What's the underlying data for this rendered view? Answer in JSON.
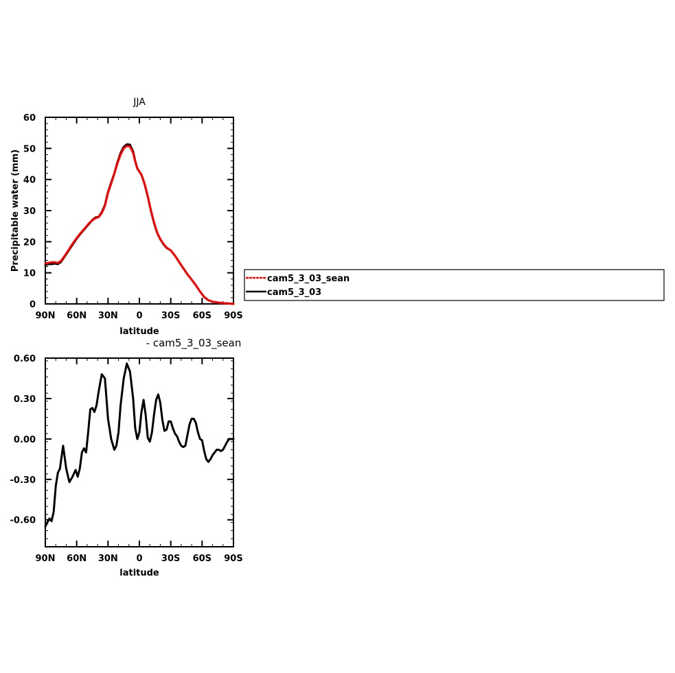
{
  "colors": {
    "cam5_3_03_sean": "#ff0000",
    "cam5_3_03": "#000000",
    "diff": "#000000"
  },
  "legend": {
    "placement": "right",
    "entries": [
      {
        "label": "cam5_3_03_sean",
        "color": "#ff0000"
      },
      {
        "label": "cam5_3_03",
        "color": "#000000"
      }
    ]
  },
  "chart_data": [
    {
      "type": "line",
      "title": "JJA",
      "xlabel": "latitude",
      "ylabel": "Precipitable water (mm)",
      "xlim": [
        90,
        -90
      ],
      "ylim": [
        0,
        60
      ],
      "xticks": [
        90,
        60,
        30,
        0,
        -30,
        -60,
        -90
      ],
      "xticklabels": [
        "90N",
        "60N",
        "30N",
        "0",
        "30S",
        "60S",
        "90S"
      ],
      "yticks": [
        0,
        10,
        20,
        30,
        40,
        50,
        60
      ],
      "yticklabels": [
        "0",
        "10",
        "20",
        "30",
        "40",
        "50",
        "60"
      ],
      "grid": false,
      "series": [
        {
          "name": "cam5_3_03",
          "color": "#000000",
          "x": [
            90,
            87,
            84,
            81,
            78,
            75,
            72,
            68,
            64,
            60,
            56,
            52,
            48,
            45,
            42,
            39,
            36,
            33,
            30,
            27,
            24,
            21,
            18,
            15,
            12,
            9,
            6,
            4,
            2,
            0,
            -2,
            -5,
            -8,
            -11,
            -14,
            -17,
            -20,
            -23,
            -26,
            -30,
            -34,
            -38,
            -42,
            -46,
            -50,
            -54,
            -58,
            -62,
            -66,
            -70,
            -74,
            -78,
            -82,
            -86,
            -90
          ],
          "y": [
            12.5,
            12.8,
            12.8,
            13.0,
            12.8,
            13.5,
            15.0,
            17.0,
            19.0,
            21.0,
            22.7,
            24.2,
            25.8,
            27.0,
            27.8,
            28.0,
            29.5,
            31.8,
            36.0,
            39.0,
            42.0,
            45.5,
            48.5,
            50.5,
            51.3,
            51.2,
            49.0,
            46.0,
            43.5,
            42.5,
            41.5,
            38.5,
            34.5,
            30.0,
            26.0,
            22.8,
            20.8,
            19.2,
            18.0,
            17.2,
            15.5,
            13.5,
            11.5,
            9.5,
            7.8,
            6.0,
            4.0,
            2.2,
            1.2,
            0.7,
            0.5,
            0.3,
            0.2,
            0.1,
            0.0
          ]
        },
        {
          "name": "cam5_3_03_sean",
          "color": "#ff0000",
          "x": [
            90,
            87,
            84,
            81,
            78,
            75,
            72,
            68,
            64,
            60,
            56,
            52,
            48,
            45,
            42,
            39,
            36,
            33,
            30,
            27,
            24,
            21,
            18,
            15,
            12,
            9,
            6,
            4,
            2,
            0,
            -2,
            -5,
            -8,
            -11,
            -14,
            -17,
            -20,
            -23,
            -26,
            -30,
            -34,
            -38,
            -42,
            -46,
            -50,
            -54,
            -58,
            -62,
            -66,
            -70,
            -74,
            -78,
            -82,
            -86,
            -90
          ],
          "y": [
            13.0,
            13.2,
            13.4,
            13.4,
            13.2,
            13.8,
            15.2,
            17.2,
            19.3,
            21.2,
            22.9,
            24.4,
            26.0,
            26.9,
            27.6,
            27.9,
            29.2,
            31.5,
            35.7,
            38.7,
            41.8,
            45.2,
            48.0,
            50.0,
            50.8,
            50.6,
            48.5,
            45.8,
            43.6,
            42.6,
            41.6,
            38.7,
            34.7,
            30.2,
            26.2,
            22.9,
            20.9,
            19.3,
            18.1,
            17.2,
            15.5,
            13.5,
            11.5,
            9.5,
            7.8,
            6.0,
            4.0,
            2.2,
            1.2,
            0.7,
            0.5,
            0.3,
            0.2,
            0.1,
            0.0
          ]
        }
      ]
    },
    {
      "type": "line",
      "title": "- cam5_3_03_sean",
      "xlabel": "latitude",
      "ylabel": "",
      "xlim": [
        90,
        -90
      ],
      "ylim": [
        -0.8,
        0.6
      ],
      "xticks": [
        90,
        60,
        30,
        0,
        -30,
        -60,
        -90
      ],
      "xticklabels": [
        "90N",
        "60N",
        "30N",
        "0",
        "30S",
        "60S",
        "90S"
      ],
      "yticks": [
        0.6,
        0.3,
        0.0,
        -0.3,
        -0.6
      ],
      "yticklabels": [
        "0.60",
        "0.30",
        "0.00",
        "-0.30",
        "-0.60"
      ],
      "grid": false,
      "series": [
        {
          "name": "",
          "color": "#000000",
          "x": [
            90,
            88,
            86,
            84,
            82,
            80,
            78,
            76,
            73,
            70,
            67,
            64,
            61,
            59,
            57,
            55,
            53,
            51,
            49,
            47,
            45,
            43,
            41,
            39,
            36,
            33,
            30,
            27,
            24,
            22,
            20,
            18,
            15,
            12,
            9,
            6,
            4,
            2,
            0,
            -2,
            -4,
            -6,
            -8,
            -10,
            -12,
            -14,
            -16,
            -18,
            -20,
            -22,
            -24,
            -26,
            -28,
            -30,
            -32,
            -34,
            -36,
            -38,
            -40,
            -42,
            -44,
            -46,
            -48,
            -50,
            -52,
            -54,
            -56,
            -58,
            -60,
            -62,
            -64,
            -66,
            -68,
            -70,
            -72,
            -74,
            -76,
            -78,
            -80,
            -82,
            -84,
            -86,
            -88,
            -90
          ],
          "y": [
            -0.65,
            -0.62,
            -0.59,
            -0.61,
            -0.54,
            -0.35,
            -0.25,
            -0.22,
            -0.05,
            -0.22,
            -0.32,
            -0.28,
            -0.23,
            -0.28,
            -0.22,
            -0.1,
            -0.07,
            -0.1,
            0.05,
            0.22,
            0.23,
            0.2,
            0.25,
            0.35,
            0.48,
            0.45,
            0.15,
            0.0,
            -0.08,
            -0.05,
            0.05,
            0.25,
            0.45,
            0.56,
            0.5,
            0.3,
            0.08,
            0.0,
            0.05,
            0.2,
            0.29,
            0.18,
            0.01,
            -0.02,
            0.05,
            0.18,
            0.29,
            0.33,
            0.27,
            0.14,
            0.06,
            0.07,
            0.13,
            0.13,
            0.08,
            0.04,
            0.02,
            -0.02,
            -0.05,
            -0.06,
            -0.05,
            0.03,
            0.11,
            0.15,
            0.15,
            0.12,
            0.05,
            0.0,
            -0.01,
            -0.09,
            -0.15,
            -0.17,
            -0.15,
            -0.12,
            -0.1,
            -0.08,
            -0.08,
            -0.09,
            -0.08,
            -0.05,
            -0.02,
            0.0,
            0.0,
            0.0
          ]
        }
      ]
    }
  ]
}
